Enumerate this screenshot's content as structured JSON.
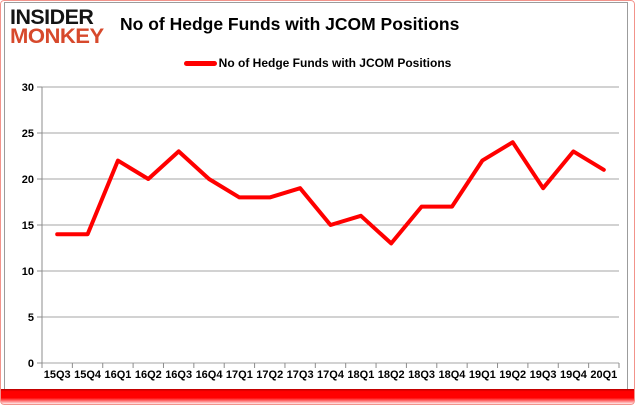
{
  "page": {
    "frame_color": "#f2938b",
    "bottom_bar_color": "#ff0000",
    "background": "#ffffff"
  },
  "header": {
    "logo": {
      "line1": "INSIDER",
      "line2": "MONKEY",
      "line1_color": "#141414",
      "line2_color": "#d7492c"
    },
    "title": "No of Hedge Funds with JCOM Positions"
  },
  "legend": {
    "label": "No of Hedge Funds with JCOM Positions",
    "color": "#ff0000"
  },
  "chart_data": {
    "type": "line",
    "title": "No of Hedge Funds with JCOM Positions",
    "categories": [
      "15Q3",
      "15Q4",
      "16Q1",
      "16Q2",
      "16Q3",
      "16Q4",
      "17Q1",
      "17Q2",
      "17Q3",
      "17Q4",
      "18Q1",
      "18Q2",
      "18Q3",
      "18Q4",
      "19Q1",
      "19Q2",
      "19Q3",
      "19Q4",
      "20Q1"
    ],
    "series": [
      {
        "name": "No of Hedge Funds with JCOM Positions",
        "color": "#ff0000",
        "values": [
          14,
          14,
          22,
          20,
          23,
          20,
          18,
          18,
          19,
          15,
          16,
          13,
          17,
          17,
          22,
          24,
          19,
          23,
          21
        ]
      }
    ],
    "xlabel": "",
    "ylabel": "",
    "ylim": [
      0,
      30
    ],
    "yticks": [
      0,
      5,
      10,
      15,
      20,
      25,
      30
    ],
    "grid": true,
    "gridline_color": "#a6a6a6",
    "axis_color": "#8c8c8c",
    "axis_text_color": "#000000",
    "legend_position": "top-center"
  }
}
